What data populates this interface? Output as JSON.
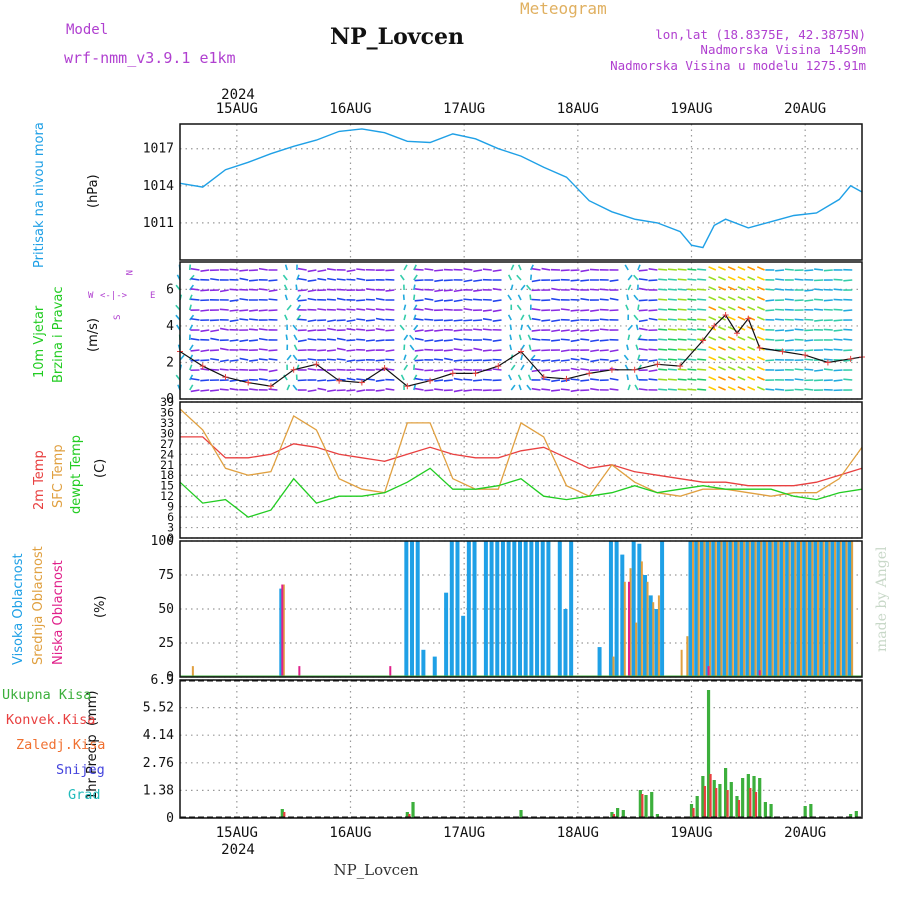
{
  "header": {
    "title": "Meteogram",
    "station": "NP_Lovcen",
    "model_label": "Model",
    "model_name": "wrf-nmm_v3.9.1  e1km",
    "lonlat": "lon,lat (18.8375E, 42.3875N)",
    "elevation": "Nadmorska Visina 1459m",
    "model_elevation": "Nadmorska Visina u modelu 1275.91m",
    "watermark": "made by Angel",
    "footer_station": "NP_Lovcen"
  },
  "colors": {
    "pressure": "#1fa0e6",
    "wind_label": "#22cc22",
    "temp": "#e84040",
    "sfc_temp": "#e0a040",
    "dewpt": "#22cc22",
    "high_cloud": "#1fa0e6",
    "mid_cloud": "#e0a040",
    "low_cloud": "#e0208a",
    "total_precip": "#3caf3c",
    "convective": "#e84040",
    "frozen": "#f07030",
    "snow": "#4444dd",
    "hail": "#22bbbb",
    "purple_text": "#b040d0",
    "gold_text": "#e0b060"
  },
  "chart_data": [
    {
      "type": "line",
      "panel": "pressure",
      "ylabel": "Pritisak na nivou mora",
      "unit": "(hPa)",
      "ylim": [
        1008,
        1019
      ],
      "yticks": [
        1011,
        1014,
        1017
      ],
      "x_start": 14.5,
      "x_end": 20.5,
      "x": [
        14.5,
        14.7,
        14.9,
        15.1,
        15.3,
        15.5,
        15.7,
        15.9,
        16.1,
        16.3,
        16.5,
        16.7,
        16.9,
        17.1,
        17.3,
        17.5,
        17.7,
        17.9,
        18.1,
        18.3,
        18.5,
        18.7,
        18.9,
        19.0,
        19.1,
        19.2,
        19.3,
        19.5,
        19.7,
        19.9,
        20.1,
        20.3,
        20.4,
        20.5
      ],
      "values": [
        1014.2,
        1013.9,
        1015.3,
        1015.9,
        1016.6,
        1017.2,
        1017.7,
        1018.4,
        1018.6,
        1018.3,
        1017.6,
        1017.5,
        1018.2,
        1017.8,
        1017.0,
        1016.4,
        1015.5,
        1014.7,
        1012.8,
        1011.9,
        1011.3,
        1011.0,
        1010.3,
        1009.2,
        1009.0,
        1010.8,
        1011.3,
        1010.6,
        1011.1,
        1011.6,
        1011.8,
        1012.9,
        1014.0,
        1013.5
      ]
    },
    {
      "type": "line",
      "panel": "wind",
      "ylabel": "10m Vjetar Brzina i Pravac",
      "unit": "(m/s)",
      "ylim": [
        0,
        7.5
      ],
      "yticks": [
        0,
        2,
        4,
        6
      ],
      "compass": {
        "n": "N",
        "e": "E",
        "w": "W",
        "s": "S"
      },
      "x": [
        14.5,
        14.7,
        14.9,
        15.1,
        15.3,
        15.5,
        15.7,
        15.9,
        16.1,
        16.3,
        16.5,
        16.7,
        16.9,
        17.1,
        17.3,
        17.5,
        17.7,
        17.9,
        18.1,
        18.3,
        18.5,
        18.7,
        18.9,
        19.1,
        19.2,
        19.3,
        19.4,
        19.5,
        19.6,
        19.8,
        20.0,
        20.2,
        20.4,
        20.5
      ],
      "values": [
        2.6,
        1.8,
        1.2,
        0.9,
        0.7,
        1.6,
        1.9,
        1.0,
        0.9,
        1.7,
        0.7,
        1.0,
        1.4,
        1.4,
        1.8,
        2.6,
        1.2,
        1.1,
        1.4,
        1.6,
        1.6,
        1.9,
        1.8,
        3.2,
        4.0,
        4.6,
        3.6,
        4.4,
        2.8,
        2.6,
        2.4,
        2.0,
        2.2,
        2.3
      ]
    },
    {
      "type": "line",
      "panel": "temperature",
      "ylabel": "2m Temp",
      "ylabel2": "SFC Temp",
      "ylabel3": "dewpt Temp",
      "unit": "(C)",
      "ylim": [
        0,
        39
      ],
      "yticks": [
        0,
        3,
        6,
        9,
        12,
        15,
        18,
        21,
        24,
        27,
        30,
        33,
        36,
        39
      ],
      "series": [
        {
          "name": "2m Temp",
          "x": [
            14.5,
            14.7,
            14.9,
            15.1,
            15.3,
            15.5,
            15.7,
            15.9,
            16.1,
            16.3,
            16.5,
            16.7,
            16.9,
            17.1,
            17.3,
            17.5,
            17.7,
            17.9,
            18.1,
            18.3,
            18.5,
            18.7,
            18.9,
            19.1,
            19.3,
            19.5,
            19.7,
            19.9,
            20.1,
            20.3,
            20.5
          ],
          "values": [
            29,
            29,
            23,
            23,
            24,
            27,
            26,
            24,
            23,
            22,
            24,
            26,
            24,
            23,
            23,
            25,
            26,
            23,
            20,
            21,
            19,
            18,
            17,
            16,
            16,
            15,
            15,
            15,
            16,
            18,
            20
          ]
        },
        {
          "name": "SFC Temp",
          "x": [
            14.5,
            14.7,
            14.9,
            15.1,
            15.3,
            15.5,
            15.7,
            15.9,
            16.1,
            16.3,
            16.5,
            16.7,
            16.9,
            17.1,
            17.3,
            17.5,
            17.7,
            17.9,
            18.1,
            18.3,
            18.5,
            18.7,
            18.9,
            19.1,
            19.3,
            19.5,
            19.7,
            19.9,
            20.1,
            20.3,
            20.5
          ],
          "values": [
            37,
            31,
            20,
            18,
            19,
            35,
            31,
            17,
            14,
            13,
            33,
            33,
            17,
            14,
            14,
            33,
            29,
            15,
            12,
            21,
            16,
            13,
            12,
            14,
            14,
            13,
            12,
            13,
            13,
            17,
            26
          ]
        },
        {
          "name": "dewpt Temp",
          "x": [
            14.5,
            14.7,
            14.9,
            15.1,
            15.3,
            15.5,
            15.7,
            15.9,
            16.1,
            16.3,
            16.5,
            16.7,
            16.9,
            17.1,
            17.3,
            17.5,
            17.7,
            17.9,
            18.1,
            18.3,
            18.5,
            18.7,
            18.9,
            19.1,
            19.3,
            19.5,
            19.7,
            19.9,
            20.1,
            20.3,
            20.5
          ],
          "values": [
            16,
            10,
            11,
            6,
            8,
            17,
            10,
            12,
            12,
            13,
            16,
            20,
            14,
            14,
            15,
            17,
            12,
            11,
            12,
            13,
            15,
            13,
            14,
            15,
            14,
            14,
            14,
            12,
            11,
            13,
            14
          ]
        }
      ]
    },
    {
      "type": "bar",
      "panel": "cloud",
      "ylabel": "Visoka Oblacnost",
      "ylabel2": "Srednja Oblacnost",
      "ylabel3": "Niska Oblacnost",
      "unit": "(%)",
      "ylim": [
        0,
        100
      ],
      "yticks": [
        0,
        25,
        50,
        75,
        100
      ],
      "series": [
        {
          "name": "Visoka Oblacnost",
          "x": [
            15.4,
            16.5,
            16.55,
            16.6,
            16.65,
            16.75,
            16.85,
            16.9,
            16.95,
            17.0,
            17.05,
            17.1,
            17.2,
            17.25,
            17.3,
            17.35,
            17.4,
            17.45,
            17.5,
            17.55,
            17.6,
            17.65,
            17.7,
            17.75,
            17.85,
            17.9,
            17.95,
            18.2,
            18.3,
            18.35,
            18.4,
            18.5,
            18.55,
            18.6,
            18.65,
            18.7,
            18.75,
            19.0,
            19.05,
            19.1,
            19.15,
            19.2,
            19.25,
            19.3,
            19.35,
            19.4,
            19.45,
            19.5,
            19.55,
            19.6,
            19.65,
            19.7,
            19.75,
            19.8,
            19.85,
            19.9,
            19.95,
            20.0,
            20.05,
            20.1,
            20.15,
            20.2,
            20.25,
            20.3,
            20.35,
            20.4
          ],
          "values": [
            65,
            100,
            100,
            100,
            20,
            15,
            62,
            100,
            100,
            45,
            100,
            100,
            100,
            100,
            100,
            100,
            100,
            100,
            100,
            100,
            100,
            100,
            100,
            100,
            100,
            50,
            100,
            22,
            100,
            100,
            90,
            100,
            98,
            75,
            60,
            50,
            100,
            100,
            100,
            100,
            100,
            100,
            100,
            100,
            100,
            100,
            100,
            100,
            100,
            100,
            100,
            100,
            100,
            100,
            100,
            100,
            100,
            100,
            100,
            100,
            100,
            100,
            100,
            100,
            100,
            100
          ]
        },
        {
          "name": "Srednja Oblacnost",
          "x": [
            14.6,
            15.4,
            18.3,
            18.4,
            18.45,
            18.5,
            18.55,
            18.6,
            18.65,
            18.7,
            18.9,
            18.95,
            19.0,
            19.05,
            19.1,
            19.15,
            19.2,
            19.25,
            19.3,
            19.35,
            19.4,
            19.45,
            19.5,
            19.55,
            19.6,
            19.65,
            19.7,
            19.75,
            19.8,
            19.85,
            19.9,
            19.95,
            20.0,
            20.05,
            20.1,
            20.15,
            20.2,
            20.25,
            20.3,
            20.35,
            20.4
          ],
          "values": [
            8,
            68,
            15,
            70,
            80,
            40,
            85,
            70,
            55,
            60,
            20,
            30,
            100,
            100,
            100,
            100,
            100,
            100,
            100,
            100,
            100,
            100,
            100,
            100,
            100,
            100,
            100,
            100,
            100,
            100,
            100,
            100,
            100,
            100,
            100,
            100,
            100,
            100,
            100,
            100,
            100
          ]
        },
        {
          "name": "Niska Oblacnost",
          "x": [
            15.4,
            15.55,
            16.35,
            18.45,
            19.15,
            19.6
          ],
          "values": [
            68,
            8,
            8,
            70,
            8,
            5
          ]
        }
      ]
    },
    {
      "type": "bar",
      "panel": "precip",
      "ylabel": "1hr Precip",
      "unit": "(mm)",
      "ylim": [
        0,
        6.9
      ],
      "yticks": [
        0,
        1.38,
        2.76,
        4.14,
        5.52,
        6.9
      ],
      "legend": [
        "Ukupna  Kisa",
        "Konvek.Kisa",
        "Zaledj.Kisa",
        "Snijeg",
        "Grad"
      ],
      "series": [
        {
          "name": "Ukupna  Kisa",
          "x": [
            15.4,
            16.5,
            16.55,
            17.5,
            18.3,
            18.35,
            18.4,
            18.55,
            18.6,
            18.65,
            18.7,
            19.0,
            19.05,
            19.1,
            19.15,
            19.2,
            19.25,
            19.3,
            19.35,
            19.4,
            19.45,
            19.5,
            19.55,
            19.6,
            19.65,
            19.7,
            20.0,
            20.05,
            20.4,
            20.45
          ],
          "values": [
            0.45,
            0.3,
            0.8,
            0.4,
            0.3,
            0.5,
            0.4,
            1.4,
            1.15,
            1.3,
            0.2,
            0.7,
            1.1,
            2.1,
            6.4,
            1.9,
            1.7,
            2.5,
            1.8,
            1.1,
            2.0,
            2.2,
            2.1,
            2.0,
            0.8,
            0.7,
            0.6,
            0.7,
            0.2,
            0.35
          ]
        },
        {
          "name": "Konvek.Kisa",
          "x": [
            15.4,
            16.5,
            18.3,
            18.55,
            19.0,
            19.1,
            19.15,
            19.2,
            19.3,
            19.4,
            19.5,
            19.55
          ],
          "values": [
            0.3,
            0.2,
            0.2,
            1.2,
            0.5,
            1.6,
            2.2,
            1.5,
            1.4,
            0.9,
            1.5,
            1.3
          ]
        }
      ]
    }
  ],
  "x_axis": {
    "ticks": [
      {
        "day": 15,
        "label": "15AUG"
      },
      {
        "day": 16,
        "label": "16AUG"
      },
      {
        "day": 17,
        "label": "17AUG"
      },
      {
        "day": 18,
        "label": "18AUG"
      },
      {
        "day": 19,
        "label": "19AUG"
      },
      {
        "day": 20,
        "label": "20AUG"
      }
    ],
    "year": "2024"
  }
}
